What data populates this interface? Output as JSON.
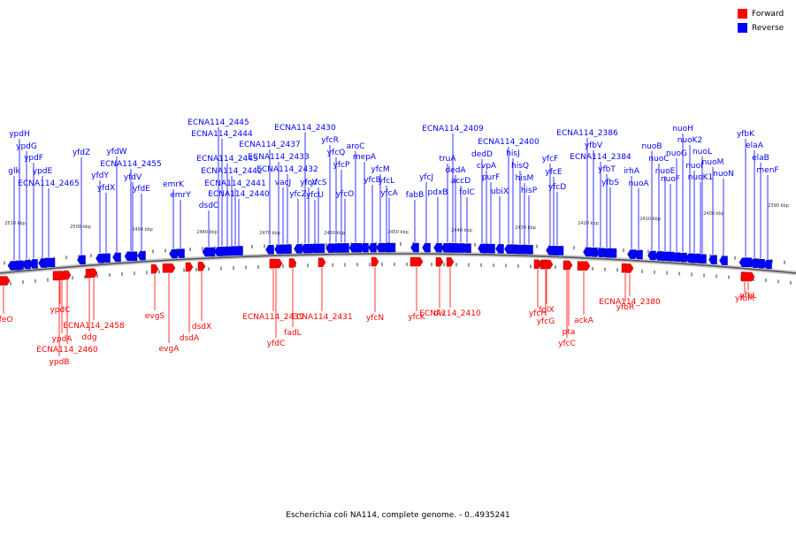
{
  "legend": {
    "forward_label": "Forward",
    "reverse_label": "Reverse",
    "forward_color": "#ff0000",
    "reverse_color": "#0000ff"
  },
  "caption": "Escherichia coli NA114, complete genome. - 0..4935241",
  "ruler_labels": [
    "2510 kbp",
    "2500 kbp",
    "2490 kbp",
    "2480 kbp",
    "2470 kbp",
    "2460 kbp",
    "2450 kbp",
    "2440 kbp",
    "2430 kbp",
    "2420 kbp",
    "2410 kbp",
    "2400 kbp",
    "2390 kbp"
  ],
  "reverse_gene_labels": [
    "glk",
    "ypdH",
    "ypdG",
    "ypdF",
    "ypdE",
    "ECNA114_2465",
    "yfdZ",
    "yfdY",
    "yfdX",
    "yfdW",
    "ECNA114_2455",
    "yfdV",
    "yfdE",
    "emrK",
    "emrY",
    "dsdC",
    "ECNA114_2445",
    "ECNA114_2444",
    "ECNA114_2443",
    "ECNA114_2442",
    "ECNA114_2441",
    "ECNA114_2440",
    "ECNA114_2437",
    "ECNA114_2433",
    "ECNA114_2432",
    "vacJ",
    "yfcZ",
    "ECNA114_2430",
    "yfcV",
    "yfcU",
    "yfcS",
    "yfcR",
    "yfcQ",
    "yfcP",
    "yfcO",
    "aroC",
    "mepA",
    "yfcB",
    "yfcM",
    "yfcL",
    "yfcA",
    "fabB",
    "yfcJ",
    "ECNA114_2409",
    "pdxB",
    "truA",
    "dedA",
    "accD",
    "folC",
    "dedD",
    "cvpA",
    "purF",
    "ubiX",
    "ECNA114_2400",
    "hisJ",
    "hisQ",
    "hisM",
    "hisP",
    "yfcF",
    "yfcE",
    "yfcD",
    "ECNA114_2386",
    "yfbV",
    "ECNA114_2384",
    "yfbT",
    "yfbS",
    "irhA",
    "nuoA",
    "nuoB",
    "nuoC",
    "nuoE",
    "nuoF",
    "nuoG",
    "nuoH",
    "nuoK2",
    "nuoI",
    "nuoL",
    "nuoK1",
    "nuoM",
    "nuoN",
    "yfbK",
    "elaA",
    "elaB",
    "menF"
  ],
  "forward_gene_labels": [
    "yfeO",
    "ypdC",
    "ypdA",
    "ECNA114_2460",
    "ypdB",
    "ddg",
    "ECNA114_2458",
    "evgS",
    "evgA",
    "dsdA",
    "dsdX",
    "ECNA114_2439",
    "yfdC",
    "fadL",
    "ECNA114_2431",
    "yfcN",
    "yfcK",
    "div",
    "ECNA114_2410",
    "yfcH",
    "folX",
    "yfcG",
    "pta",
    "yfcC",
    "ackA",
    "yfbR",
    "ECNA114_2380",
    "yfbM",
    "yfbL"
  ]
}
